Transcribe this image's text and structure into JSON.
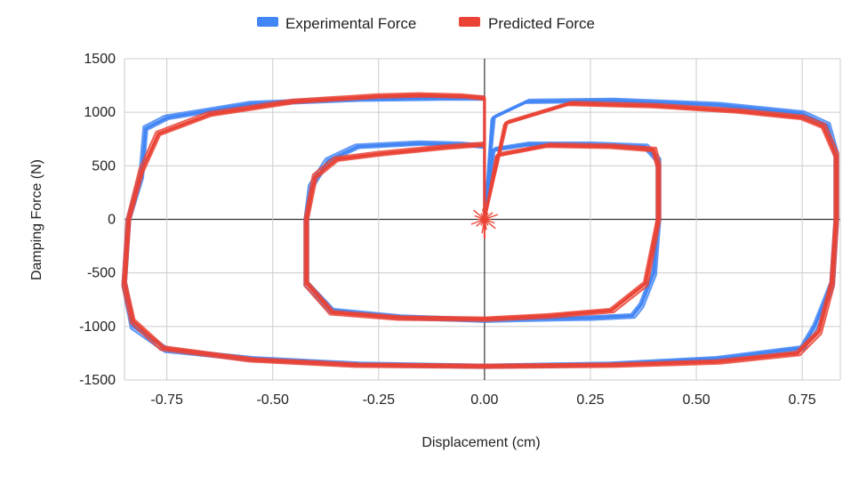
{
  "chart_data": {
    "type": "line",
    "xlabel": "Displacement (cm)",
    "ylabel": "Damping Force (N)",
    "xlim": [
      -0.85,
      0.84
    ],
    "ylim": [
      -1500,
      1500
    ],
    "x_ticks": [
      "-0.75",
      "-0.50",
      "-0.25",
      "0.00",
      "0.25",
      "0.50",
      "0.75"
    ],
    "x_tick_values": [
      -0.75,
      -0.5,
      -0.25,
      0,
      0.25,
      0.5,
      0.75
    ],
    "y_ticks": [
      "1500",
      "1000",
      "500",
      "0",
      "-500",
      "-1000",
      "-1500"
    ],
    "y_tick_values": [
      1500,
      1000,
      500,
      0,
      -500,
      -1000,
      -1500
    ],
    "grid": true,
    "legend_position": "top",
    "series": [
      {
        "name": "Experimental Force",
        "color": "#4285F4",
        "x": [
          0.0,
          0.02,
          0.1,
          0.3,
          0.55,
          0.75,
          0.81,
          0.83,
          0.83,
          0.82,
          0.78,
          0.75,
          0.55,
          0.3,
          0.0,
          -0.3,
          -0.55,
          -0.75,
          -0.83,
          -0.85,
          -0.84,
          -0.81,
          -0.8,
          -0.75,
          -0.55,
          -0.3,
          -0.1,
          0.0,
          0.0,
          0.02,
          0.1,
          0.25,
          0.38,
          0.41,
          0.41,
          0.4,
          0.37,
          0.35,
          0.25,
          0.1,
          0.0,
          -0.2,
          -0.36,
          -0.42,
          -0.42,
          -0.41,
          -0.37,
          -0.3,
          -0.15,
          -0.05,
          0.0,
          0.0
        ],
        "y": [
          0,
          950,
          1100,
          1110,
          1070,
          990,
          880,
          600,
          0,
          -600,
          -1000,
          -1200,
          -1300,
          -1350,
          -1370,
          -1350,
          -1300,
          -1220,
          -1000,
          -600,
          0,
          400,
          850,
          950,
          1080,
          1120,
          1130,
          1130,
          0,
          650,
          700,
          700,
          680,
          550,
          0,
          -500,
          -800,
          -900,
          -920,
          -930,
          -940,
          -910,
          -850,
          -600,
          0,
          300,
          550,
          680,
          710,
          700,
          680,
          0
        ]
      },
      {
        "name": "Predicted Force",
        "color": "#EA4335",
        "x": [
          0.0,
          0.05,
          0.2,
          0.4,
          0.6,
          0.75,
          0.8,
          0.83,
          0.83,
          0.82,
          0.79,
          0.74,
          0.55,
          0.3,
          0.0,
          -0.3,
          -0.55,
          -0.76,
          -0.83,
          -0.85,
          -0.84,
          -0.81,
          -0.77,
          -0.65,
          -0.45,
          -0.25,
          -0.15,
          -0.05,
          0.0,
          0.0,
          0.03,
          0.15,
          0.3,
          0.4,
          0.41,
          0.41,
          0.38,
          0.3,
          0.15,
          0.0,
          -0.2,
          -0.36,
          -0.42,
          -0.42,
          -0.4,
          -0.35,
          -0.25,
          -0.1,
          0.0,
          0.0
        ],
        "y": [
          0,
          900,
          1080,
          1060,
          1010,
          950,
          870,
          600,
          0,
          -600,
          -1050,
          -1250,
          -1330,
          -1360,
          -1370,
          -1360,
          -1310,
          -1200,
          -950,
          -600,
          0,
          450,
          800,
          980,
          1100,
          1150,
          1160,
          1150,
          1130,
          0,
          600,
          690,
          680,
          650,
          500,
          0,
          -600,
          -850,
          -900,
          -930,
          -920,
          -870,
          -600,
          0,
          400,
          560,
          610,
          670,
          700,
          0
        ]
      }
    ],
    "center_burst": {
      "x": 0.0,
      "y_min": -180,
      "y_max": 50
    }
  }
}
